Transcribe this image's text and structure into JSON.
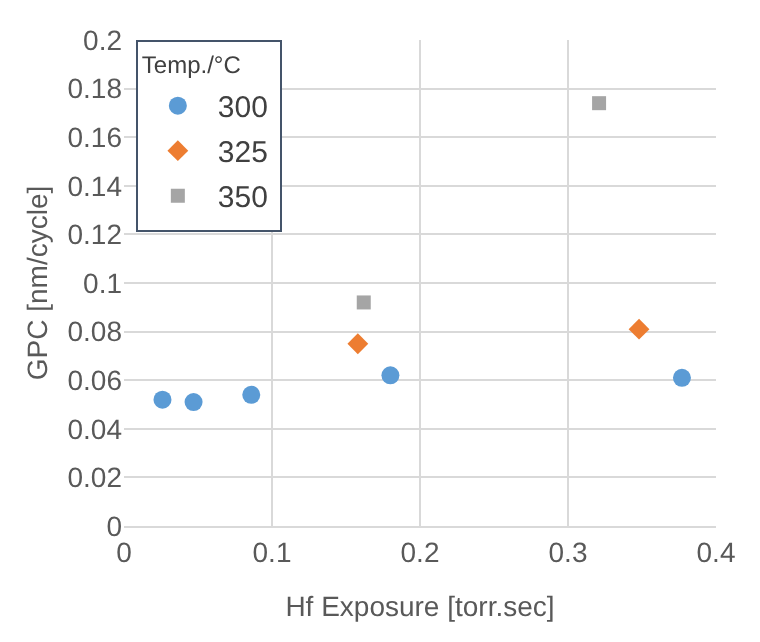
{
  "chart_data": {
    "type": "scatter",
    "xlabel": "Hf Exposure [torr.sec]",
    "ylabel": "GPC [nm/cycle]",
    "legend_title": "Temp./°C",
    "legend": "top left",
    "grid": true,
    "xlim": [
      0,
      0.4
    ],
    "xticks": [
      0,
      0.1,
      0.2,
      0.3,
      0.4
    ],
    "ylim": [
      0,
      0.2
    ],
    "yticks": [
      0,
      0.02,
      0.04,
      0.06,
      0.08,
      0.1,
      0.12,
      0.14,
      0.16,
      0.18,
      0.2
    ],
    "series": [
      {
        "name": "300",
        "color": "#5b9bd5",
        "marker": "circle",
        "x": [
          0.026,
          0.047,
          0.086,
          0.18,
          0.377
        ],
        "values": [
          0.052,
          0.051,
          0.054,
          0.062,
          0.061
        ]
      },
      {
        "name": "325",
        "color": "#ed7d31",
        "marker": "diamond",
        "x": [
          0.158,
          0.348
        ],
        "values": [
          0.075,
          0.081
        ]
      },
      {
        "name": "350",
        "color": "#a5a5a5",
        "marker": "square",
        "x": [
          0.162,
          0.321
        ],
        "values": [
          0.092,
          0.174
        ]
      }
    ]
  }
}
